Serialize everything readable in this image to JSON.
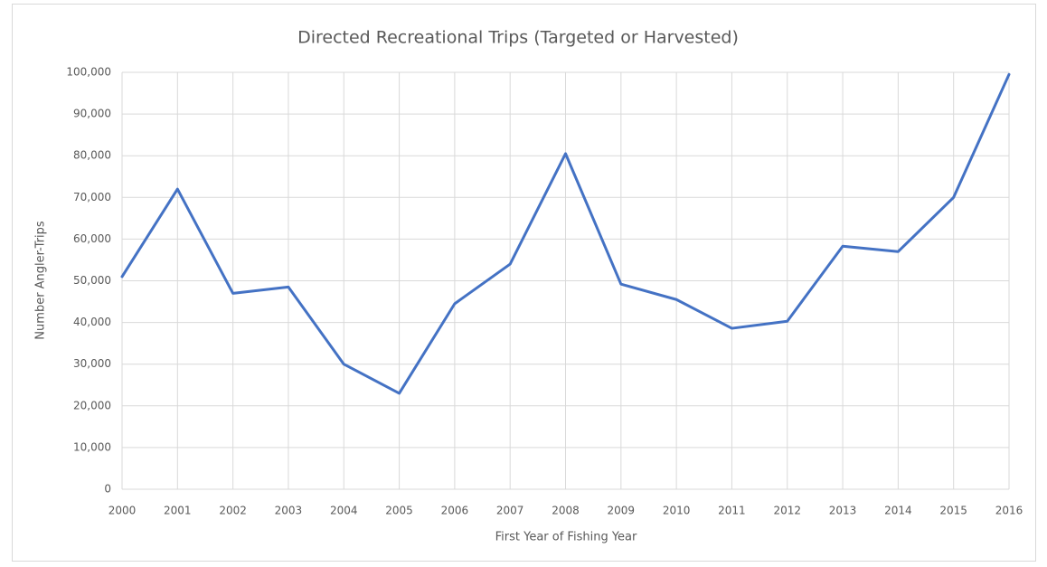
{
  "chart_data": {
    "type": "line",
    "title": "Directed Recreational Trips (Targeted or Harvested)",
    "x_label": "First Year of Fishing Year",
    "y_label": "Number Angler-Trips",
    "x": [
      2000,
      2001,
      2002,
      2003,
      2004,
      2005,
      2006,
      2007,
      2008,
      2009,
      2010,
      2011,
      2012,
      2013,
      2014,
      2015,
      2016
    ],
    "series": [
      {
        "color": "#4472c4",
        "values": [
          51000,
          72000,
          47000,
          48500,
          30000,
          23000,
          44500,
          54000,
          80500,
          49200,
          45500,
          38600,
          40300,
          58300,
          57000,
          70000,
          99500
        ]
      }
    ],
    "xlim": [
      2000,
      2016
    ],
    "xticks": [
      2000,
      2001,
      2002,
      2003,
      2004,
      2005,
      2006,
      2007,
      2008,
      2009,
      2010,
      2011,
      2012,
      2013,
      2014,
      2015,
      2016
    ],
    "ylim": [
      0,
      100000
    ],
    "yticks": [
      0,
      {
        "value": 10000,
        "label": "10,000"
      },
      {
        "value": 20000,
        "label": "20,000"
      },
      {
        "value": 30000,
        "label": "30,000"
      },
      {
        "value": 40000,
        "label": "40,000"
      },
      {
        "value": 50000,
        "label": "50,000"
      },
      {
        "value": 60000,
        "label": "60,000"
      },
      {
        "value": 70000,
        "label": "70,000"
      },
      {
        "value": 80000,
        "label": "80,000"
      },
      {
        "value": 90000,
        "label": "90,000"
      },
      {
        "value": 100000,
        "label": "100,000"
      }
    ],
    "grid": true
  }
}
